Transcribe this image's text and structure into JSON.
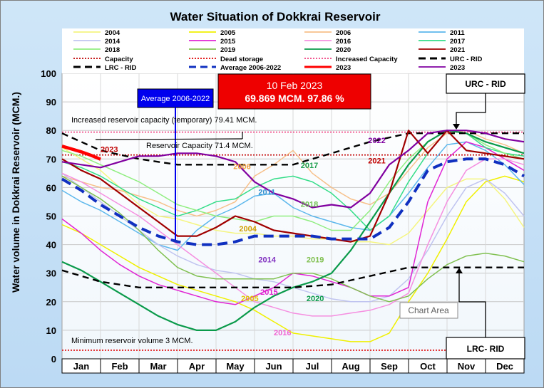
{
  "chart_data": {
    "type": "line",
    "title": "Water Situation of Dokkrai Reservoir",
    "ylabel": "Water volume in Dokkrai Reservoir (MCM.)",
    "xlabel": "",
    "ylim": [
      0,
      100
    ],
    "yticks": [
      "0",
      "10",
      "20",
      "30",
      "40",
      "50",
      "60",
      "70",
      "80",
      "90",
      "100"
    ],
    "months": [
      "Jan",
      "Feb",
      "Mar",
      "Apr",
      "May",
      "Jun",
      "Jul",
      "Aug",
      "Sep",
      "Oct",
      "Nov",
      "Dec"
    ],
    "grid": true,
    "legend_position": "top",
    "legend": [
      {
        "label": "2004",
        "color": "#f5f580",
        "dash": "solid",
        "weight": "thin"
      },
      {
        "label": "2005",
        "color": "#f0f000",
        "dash": "solid",
        "weight": "thin"
      },
      {
        "label": "2006",
        "color": "#f7c08a",
        "dash": "solid",
        "weight": "thin"
      },
      {
        "label": "2011",
        "color": "#5cb7ec",
        "dash": "solid",
        "weight": "thin"
      },
      {
        "label": "2014",
        "color": "#c0c4f0",
        "dash": "solid",
        "weight": "thin"
      },
      {
        "label": "2015",
        "color": "#e024d4",
        "dash": "solid",
        "weight": "thin"
      },
      {
        "label": "2016",
        "color": "#f58fe0",
        "dash": "solid",
        "weight": "thin"
      },
      {
        "label": "2017",
        "color": "#33dd88",
        "dash": "solid",
        "weight": "thin"
      },
      {
        "label": "2018",
        "color": "#90ee80",
        "dash": "solid",
        "weight": "thin"
      },
      {
        "label": "2019",
        "color": "#80c050",
        "dash": "solid",
        "weight": "thin"
      },
      {
        "label": "2020",
        "color": "#0a9a4a",
        "dash": "solid",
        "weight": "thin"
      },
      {
        "label": "2021",
        "color": "#a00000",
        "dash": "solid",
        "weight": "thin"
      },
      {
        "label": "Capacity",
        "color": "#c00000",
        "dash": "dot",
        "weight": "thin"
      },
      {
        "label": "Dead storage",
        "color": "#e00000",
        "dash": "dot",
        "weight": "thin"
      },
      {
        "label": "Increased Capacity",
        "color": "#f04080",
        "dash": "dot",
        "weight": "thin"
      },
      {
        "label": "URC - RID",
        "color": "#000000",
        "dash": "dash",
        "weight": "thick"
      },
      {
        "label": "LRC - RID",
        "color": "#000000",
        "dash": "dash",
        "weight": "thick"
      },
      {
        "label": "Average 2006-2022",
        "color": "#1030c0",
        "dash": "dash",
        "weight": "thick"
      },
      {
        "label": "2023",
        "color": "#ff0000",
        "dash": "solid",
        "weight": "thick"
      },
      {
        "label": "2023",
        "color": "#8000a0",
        "dash": "solid",
        "weight": "thin"
      }
    ],
    "reference_lines": [
      {
        "name": "Capacity",
        "y": 71.4
      },
      {
        "name": "Increased Capacity",
        "y": 79.41
      },
      {
        "name": "Dead storage",
        "y": 3
      }
    ],
    "series": [
      {
        "name": "2004",
        "color": "#f5f580",
        "x": [
          0,
          0.5,
          1,
          1.5,
          2,
          2.5,
          3,
          3.5,
          4,
          4.5,
          5,
          5.5,
          6,
          6.5,
          7,
          7.5,
          8,
          8.5,
          9,
          9.5,
          10,
          10.5,
          11,
          11.5,
          12
        ],
        "y": [
          74,
          70,
          66,
          60,
          54,
          50,
          49,
          47,
          45,
          44,
          44,
          43,
          43,
          42,
          42,
          41,
          41,
          40,
          44,
          52,
          60,
          63,
          63,
          56,
          46
        ]
      },
      {
        "name": "2005",
        "color": "#f0f000",
        "x": [
          0,
          0.5,
          1,
          1.5,
          2,
          2.5,
          3,
          3.5,
          4,
          4.5,
          5,
          5.5,
          6,
          6.5,
          7,
          7.5,
          8,
          8.5,
          9,
          9.5,
          10,
          10.5,
          11,
          11.5,
          12
        ],
        "y": [
          47,
          44,
          40,
          36,
          32,
          29,
          26,
          24,
          22,
          20,
          17,
          13,
          9,
          8,
          7,
          6,
          6,
          9,
          20,
          30,
          42,
          55,
          62,
          64,
          62
        ]
      },
      {
        "name": "2006",
        "color": "#f7c08a",
        "x": [
          0,
          0.5,
          1,
          1.5,
          2,
          2.5,
          3,
          3.5,
          4,
          4.5,
          5,
          5.5,
          6,
          6.5,
          7,
          7.5,
          8,
          8.5,
          9,
          9.5,
          10,
          10.5,
          11,
          11.5,
          12
        ],
        "y": [
          64,
          62,
          60,
          59,
          57,
          55,
          52,
          50,
          52,
          55,
          64,
          68,
          73,
          65,
          60,
          56,
          54,
          58,
          66,
          74,
          79,
          80,
          77,
          75,
          72
        ]
      },
      {
        "name": "2011",
        "color": "#5cb7ec",
        "x": [
          0,
          0.5,
          1,
          1.5,
          2,
          2.5,
          3,
          3.5,
          4,
          4.5,
          5,
          5.5,
          6,
          6.5,
          7,
          7.5,
          8,
          8.5,
          9,
          9.5,
          10,
          10.5,
          11,
          11.5,
          12
        ],
        "y": [
          59,
          55,
          52,
          48,
          44,
          40,
          38,
          45,
          50,
          53,
          57,
          58,
          53,
          50,
          48,
          46,
          45,
          50,
          58,
          67,
          75,
          76,
          73,
          68,
          61
        ]
      },
      {
        "name": "2014",
        "color": "#c0c4f0",
        "x": [
          0,
          0.5,
          1,
          1.5,
          2,
          2.5,
          3,
          3.5,
          4,
          4.5,
          5,
          5.5,
          6,
          6.5,
          7,
          7.5,
          8,
          8.5,
          9,
          9.5,
          10,
          10.5,
          11,
          11.5,
          12
        ],
        "y": [
          65,
          60,
          55,
          50,
          45,
          40,
          36,
          33,
          31,
          30,
          28,
          27,
          25,
          23,
          21,
          20,
          20,
          22,
          28,
          38,
          50,
          60,
          63,
          58,
          50
        ]
      },
      {
        "name": "2015",
        "color": "#e024d4",
        "x": [
          0,
          0.5,
          1,
          1.5,
          2,
          2.5,
          3,
          3.5,
          4,
          4.5,
          5,
          5.5,
          6,
          6.5,
          7,
          7.5,
          8,
          8.5,
          9,
          9.5,
          10,
          10.5,
          11,
          11.5,
          12
        ],
        "y": [
          49,
          44,
          38,
          33,
          29,
          26,
          24,
          22,
          20,
          19,
          22,
          25,
          30,
          29,
          27,
          25,
          22,
          22,
          25,
          55,
          70,
          76,
          74,
          70,
          66
        ]
      },
      {
        "name": "2016",
        "color": "#f58fe0",
        "x": [
          0,
          0.5,
          1,
          1.5,
          2,
          2.5,
          3,
          3.5,
          4,
          4.5,
          5,
          5.5,
          6,
          6.5,
          7,
          7.5,
          8,
          8.5,
          9,
          9.5,
          10,
          10.5,
          11,
          11.5,
          12
        ],
        "y": [
          65,
          62,
          58,
          54,
          50,
          45,
          40,
          35,
          30,
          25,
          20,
          18,
          16,
          15,
          15,
          16,
          17,
          19,
          23,
          40,
          55,
          66,
          70,
          70,
          68
        ]
      },
      {
        "name": "2017",
        "color": "#33dd88",
        "x": [
          0,
          0.5,
          1,
          1.5,
          2,
          2.5,
          3,
          3.5,
          4,
          4.5,
          5,
          5.5,
          6,
          6.5,
          7,
          7.5,
          8,
          8.5,
          9,
          9.5,
          10,
          10.5,
          11,
          11.5,
          12
        ],
        "y": [
          69,
          67,
          64,
          60,
          56,
          53,
          50,
          52,
          55,
          56,
          60,
          63,
          64,
          62,
          58,
          52,
          45,
          50,
          62,
          72,
          80,
          79,
          74,
          72,
          71
        ]
      },
      {
        "name": "2018",
        "color": "#90ee80",
        "x": [
          0,
          0.5,
          1,
          1.5,
          2,
          2.5,
          3,
          3.5,
          4,
          4.5,
          5,
          5.5,
          6,
          6.5,
          7,
          7.5,
          8,
          8.5,
          9,
          9.5,
          10,
          10.5,
          11,
          11.5,
          12
        ],
        "y": [
          73,
          71,
          68,
          65,
          62,
          58,
          54,
          52,
          50,
          49,
          48,
          50,
          50,
          48,
          45,
          45,
          52,
          62,
          70,
          76,
          80,
          79,
          75,
          72,
          70
        ]
      },
      {
        "name": "2019",
        "color": "#80c050",
        "x": [
          0,
          0.5,
          1,
          1.5,
          2,
          2.5,
          3,
          3.5,
          4,
          4.5,
          5,
          5.5,
          6,
          6.5,
          7,
          7.5,
          8,
          8.5,
          9,
          9.5,
          10,
          10.5,
          11,
          11.5,
          12
        ],
        "y": [
          64,
          60,
          56,
          51,
          45,
          38,
          32,
          29,
          28,
          28,
          28,
          28,
          30,
          30,
          28,
          25,
          22,
          20,
          22,
          28,
          33,
          36,
          37,
          36,
          34
        ]
      },
      {
        "name": "2020",
        "color": "#0a9a4a",
        "x": [
          0,
          0.5,
          1,
          1.5,
          2,
          2.5,
          3,
          3.5,
          4,
          4.5,
          5,
          5.5,
          6,
          6.5,
          7,
          7.5,
          8,
          8.5,
          9,
          9.5,
          10,
          10.5,
          11,
          11.5,
          12
        ],
        "y": [
          34,
          31,
          27,
          23,
          19,
          15,
          12,
          10,
          10,
          13,
          18,
          22,
          25,
          27,
          30,
          38,
          48,
          58,
          68,
          76,
          80,
          79,
          76,
          74,
          72
        ]
      },
      {
        "name": "2021",
        "color": "#a00000",
        "x": [
          0,
          0.5,
          1,
          1.5,
          2,
          2.5,
          3,
          3.5,
          4,
          4.5,
          5,
          5.5,
          6,
          6.5,
          7,
          7.5,
          8,
          8.5,
          9,
          9.5,
          10,
          10.5,
          11,
          11.5,
          12
        ],
        "y": [
          70,
          66,
          63,
          58,
          53,
          48,
          43,
          43,
          46,
          50,
          48,
          45,
          44,
          43,
          42,
          41,
          43,
          58,
          80,
          72,
          80,
          73,
          72,
          71,
          70
        ]
      },
      {
        "name": "URC - RID",
        "color": "#000000",
        "x": [
          0,
          1,
          2,
          3,
          4,
          5,
          6,
          7,
          8,
          9,
          10,
          11,
          12
        ],
        "y": [
          79,
          73,
          70,
          68,
          68,
          68,
          68,
          72,
          76,
          79,
          79,
          79,
          79
        ]
      },
      {
        "name": "LRC - RID",
        "color": "#000000",
        "x": [
          0,
          1,
          2,
          3,
          4,
          5,
          6,
          7,
          8,
          9,
          10,
          11,
          12
        ],
        "y": [
          31,
          27,
          25,
          25,
          25,
          25,
          25,
          26,
          29,
          32,
          32,
          32,
          32
        ]
      },
      {
        "name": "Average 2006-2022",
        "color": "#1030c0",
        "x": [
          0,
          0.5,
          1,
          1.5,
          2,
          2.5,
          3,
          3.5,
          4,
          4.5,
          5,
          5.5,
          6,
          6.5,
          7,
          7.5,
          8,
          8.5,
          9,
          9.5,
          10,
          10.5,
          11,
          11.5,
          12
        ],
        "y": [
          63,
          59,
          54,
          50,
          46,
          43,
          41,
          40,
          40,
          41,
          43,
          43,
          43,
          43,
          42,
          42,
          42,
          46,
          55,
          66,
          69,
          70,
          70,
          68,
          64
        ]
      },
      {
        "name": "2023 (purple)",
        "color": "#8000a0",
        "x": [
          0,
          0.5,
          1,
          1.5,
          2,
          2.5,
          3,
          3.5,
          4,
          4.5,
          5,
          5.5,
          6,
          6.5,
          7,
          7.5,
          8,
          8.5,
          9,
          9.5,
          10,
          10.5,
          11,
          11.5,
          12
        ],
        "y": [
          69,
          68,
          67,
          69,
          71,
          71,
          72,
          72,
          71,
          69,
          62,
          58,
          56,
          53,
          54,
          53,
          58,
          68,
          73,
          79,
          80,
          80,
          79,
          77,
          76
        ]
      },
      {
        "name": "2023 (red, current)",
        "color": "#ff0000",
        "x": [
          0,
          0.25,
          0.5,
          0.75,
          1.0
        ],
        "y": [
          74.5,
          73.5,
          72.5,
          71.3,
          69.9
        ]
      }
    ],
    "annotations": [
      {
        "text": "Average 2006-2022"
      },
      {
        "text": "10 Feb 2023"
      },
      {
        "text": "69.869 MCM. 97.86 %"
      },
      {
        "text": "URC - RID"
      },
      {
        "text": "LRC- RID"
      },
      {
        "text": "Increased reservoir capacity (temporary) 79.41 MCM."
      },
      {
        "text": "Reservoir Capacity 71.4 MCM."
      },
      {
        "text": "Minimum reservoir volume 3 MCM."
      },
      {
        "text": "Chart Area"
      }
    ],
    "inline_labels": [
      {
        "text": "2023",
        "color": "#c00000",
        "x": 1.0,
        "y": 72.5
      },
      {
        "text": "2006",
        "color": "#f0a040",
        "x": 4.45,
        "y": 66.5
      },
      {
        "text": "2017",
        "color": "#20a050",
        "x": 6.2,
        "y": 66.8
      },
      {
        "text": "2022",
        "color": "#8000a0",
        "x": 7.95,
        "y": 75.5
      },
      {
        "text": "2021",
        "color": "#c00000",
        "x": 7.95,
        "y": 68.5
      },
      {
        "text": "2011",
        "color": "#3090d0",
        "x": 5.1,
        "y": 57.5
      },
      {
        "text": "2018",
        "color": "#70c050",
        "x": 6.2,
        "y": 53.2
      },
      {
        "text": "2004",
        "color": "#d0a000",
        "x": 4.6,
        "y": 44.6
      },
      {
        "text": "2014",
        "color": "#8030c0",
        "x": 5.1,
        "y": 33.8
      },
      {
        "text": "2019",
        "color": "#80c050",
        "x": 6.35,
        "y": 33.8
      },
      {
        "text": "2005",
        "color": "#e0c000",
        "x": 4.65,
        "y": 20.2
      },
      {
        "text": "2015",
        "color": "#e020d0",
        "x": 5.15,
        "y": 22.4
      },
      {
        "text": "2020",
        "color": "#0a9a4a",
        "x": 6.35,
        "y": 20.2
      },
      {
        "text": "2016",
        "color": "#f060d0",
        "x": 5.5,
        "y": 8.2
      }
    ]
  }
}
